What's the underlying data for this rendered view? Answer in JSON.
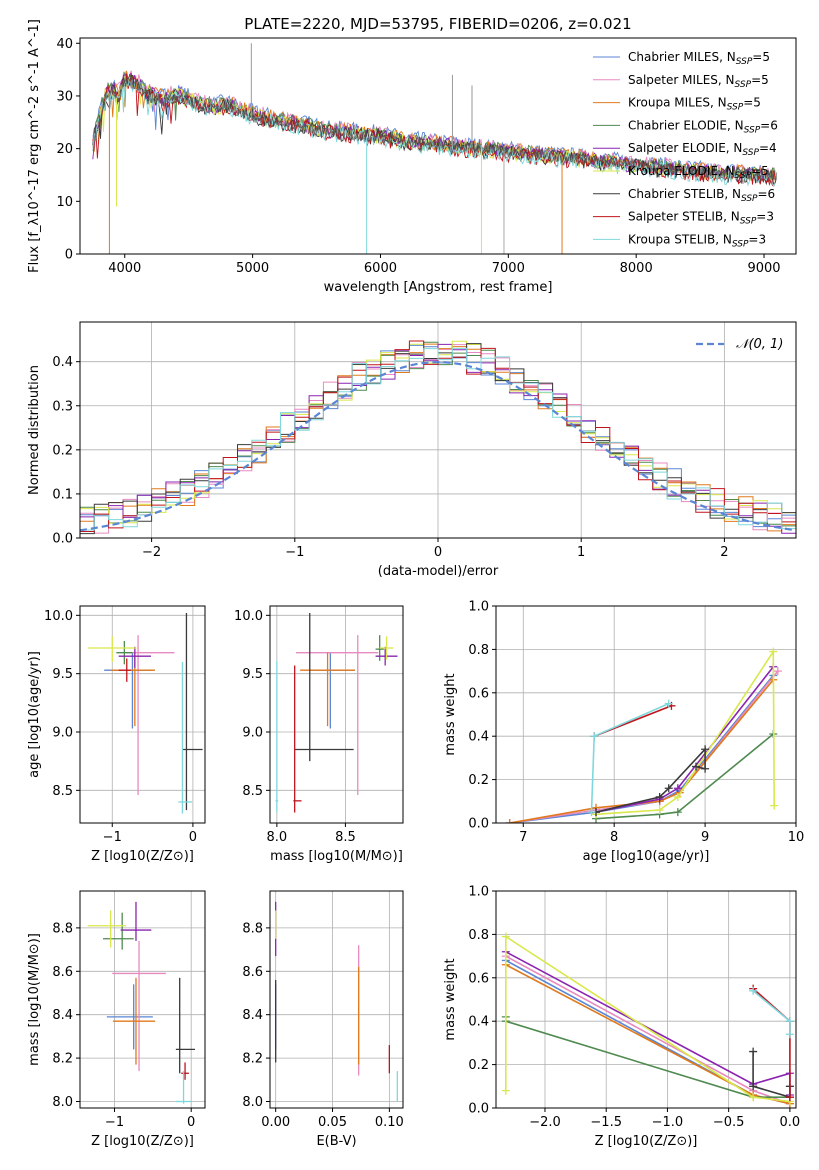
{
  "figure": {
    "title": "PLATE=2220, MJD=53795, FIBERID=0206, z=0.021",
    "model_colors": [
      "#5a86d4",
      "#e88ac0",
      "#e07a1c",
      "#4f8a4f",
      "#8b24b0",
      "#d9e84a",
      "#3a3a3a",
      "#c0141c",
      "#7fd8dc"
    ]
  },
  "chart_data": [
    {
      "type": "line",
      "id": "spectrum",
      "xlabel": "wavelength [Angstrom, rest frame]",
      "ylabel": "Flux [f_λ10^-17 erg cm^-2 s^-1 A^-1]",
      "xlim": [
        3650,
        9250
      ],
      "ylim": [
        0,
        41
      ],
      "xticks": [
        4000,
        5000,
        6000,
        7000,
        8000,
        9000
      ],
      "yticks": [
        0,
        10,
        20,
        30,
        40
      ],
      "grid": false,
      "legend_position": "top-right",
      "legend": [
        "Chabrier MILES, N_SSP=5",
        "Salpeter MILES, N_SSP=5",
        "Kroupa MILES, N_SSP=5",
        "Chabrier ELODIE, N_SSP=6",
        "Salpeter ELODIE, N_SSP=4",
        "Kroupa ELODIE, N_SSP=5",
        "Chabrier STELIB, N_SSP=6",
        "Salpeter STELIB, N_SSP=3",
        "Kroupa STELIB, N_SSP=3"
      ],
      "data_series": {
        "x": [
          3750,
          3800,
          3850,
          3900,
          3950,
          4000,
          4100,
          4200,
          4300,
          4400,
          4500,
          4600,
          4700,
          4800,
          4900,
          5000,
          5200,
          5400,
          5600,
          5800,
          6000,
          6200,
          6400,
          6600,
          6800,
          7000,
          7200,
          7400,
          7600,
          7800,
          8000,
          8200,
          8400,
          8600,
          8800,
          9000,
          9100
        ],
        "y": [
          20,
          25,
          30,
          31,
          29,
          33,
          32,
          30,
          29,
          30,
          29,
          28,
          27.5,
          28,
          27,
          26,
          25,
          24,
          23,
          22.5,
          22,
          21.5,
          21,
          20.5,
          20,
          19.5,
          19,
          18.5,
          18,
          17.5,
          17,
          16.5,
          16,
          15.5,
          15.5,
          15,
          15
        ]
      },
      "model_curves": {
        "x": [
          3750,
          3800,
          3850,
          3900,
          3950,
          4000,
          4100,
          4200,
          4300,
          4400,
          4500,
          4600,
          4700,
          4800,
          4900,
          5000,
          5200,
          5400,
          5600,
          5800,
          6000,
          6200,
          6400,
          6600,
          6800,
          7000,
          7200,
          7400,
          7600,
          7800,
          8000,
          8200,
          8400,
          8600,
          8800,
          9000,
          9100
        ],
        "y": [
          22,
          27,
          31,
          32,
          31,
          34,
          33,
          31,
          30,
          31,
          30,
          29,
          28.5,
          29,
          28,
          27,
          26,
          25,
          24,
          23.5,
          23,
          22,
          21.5,
          21,
          20.5,
          20,
          19.5,
          19,
          18.5,
          18,
          17.5,
          17,
          16.5,
          16,
          15.8,
          15.5,
          15.3
        ]
      }
    },
    {
      "type": "line",
      "id": "residual-hist",
      "xlabel": "(data-model)/error",
      "ylabel": "Normed distribution",
      "xlim": [
        -2.5,
        2.5
      ],
      "ylim": [
        0,
        0.49
      ],
      "xticks": [
        -2,
        -1,
        0,
        1,
        2
      ],
      "yticks": [
        0.0,
        0.1,
        0.2,
        0.3,
        0.4
      ],
      "grid": true,
      "legend": [
        "𝒩(0, 1)"
      ],
      "legend_position": "top-right",
      "bin_width": 0.1,
      "gaussian_color": "#5a86d4"
    },
    {
      "type": "scatter",
      "id": "age-vs-Z",
      "xlabel": "Z [log10(Z/Z⊙)]",
      "ylabel": "age  [log10(age/yr)]",
      "xlim": [
        -1.4,
        0.15
      ],
      "ylim": [
        8.22,
        10.08
      ],
      "xticks": [
        -1,
        0
      ],
      "yticks": [
        8.5,
        9.0,
        9.5,
        10.0
      ],
      "grid": true,
      "points": [
        {
          "x": -0.75,
          "y": 9.53,
          "xerr": [
            0.35,
            0.25
          ],
          "yerr": [
            0.5,
            0.15
          ]
        },
        {
          "x": -0.68,
          "y": 9.68,
          "xerr": [
            0.15,
            0.45
          ],
          "yerr": [
            1.22,
            0.15
          ]
        },
        {
          "x": -0.72,
          "y": 9.53,
          "xerr": [
            0.3,
            0.25
          ],
          "yerr": [
            0.48,
            0.15
          ]
        },
        {
          "x": -0.85,
          "y": 9.68,
          "xerr": [
            0.1,
            0.1
          ],
          "yerr": [
            0.1,
            0.1
          ]
        },
        {
          "x": -0.72,
          "y": 9.65,
          "xerr": [
            0.2,
            0.2
          ],
          "yerr": [
            0.1,
            0.08
          ]
        },
        {
          "x": -1.0,
          "y": 9.72,
          "xerr": [
            0.3,
            0.3
          ],
          "yerr": [
            0.12,
            0.1
          ]
        },
        {
          "x": -0.08,
          "y": 8.85,
          "xerr": [
            0.05,
            0.2
          ],
          "yerr": [
            0.52,
            1.17
          ]
        },
        {
          "x": -0.82,
          "y": 9.53,
          "xerr": [
            0.1,
            0.05
          ],
          "yerr": [
            0.1,
            0.1
          ]
        },
        {
          "x": -0.13,
          "y": 8.4,
          "xerr": [
            0.05,
            0.12
          ],
          "yerr": [
            0.1,
            1.2
          ]
        }
      ]
    },
    {
      "type": "scatter",
      "id": "age-vs-mass",
      "xlabel": "mass [log10(M/M⊙)]",
      "ylabel": "",
      "xlim": [
        7.95,
        8.92
      ],
      "ylim": [
        8.22,
        10.08
      ],
      "xticks": [
        8.0,
        8.5
      ],
      "yticks": [
        8.5,
        9.0,
        9.5,
        10.0
      ],
      "grid": true,
      "points": [
        {
          "x": 8.39,
          "y": 9.53,
          "xerr": [
            0.15,
            0.18
          ],
          "yerr": [
            0.5,
            0.15
          ]
        },
        {
          "x": 8.59,
          "y": 9.68,
          "xerr": [
            0.45,
            0.15
          ],
          "yerr": [
            1.22,
            0.15
          ]
        },
        {
          "x": 8.37,
          "y": 9.53,
          "xerr": [
            0.2,
            0.2
          ],
          "yerr": [
            0.48,
            0.15
          ]
        },
        {
          "x": 8.75,
          "y": 9.71,
          "xerr": [
            0.03,
            0.03
          ],
          "yerr": [
            0.1,
            0.12
          ]
        },
        {
          "x": 8.79,
          "y": 9.65,
          "xerr": [
            0.07,
            0.09
          ],
          "yerr": [
            0.08,
            0.08
          ]
        },
        {
          "x": 8.8,
          "y": 9.72,
          "xerr": [
            0.05,
            0.05
          ],
          "yerr": [
            0.1,
            0.1
          ]
        },
        {
          "x": 8.24,
          "y": 8.85,
          "xerr": [
            0.11,
            0.32
          ],
          "yerr": [
            0.1,
            1.17
          ]
        },
        {
          "x": 8.13,
          "y": 8.41,
          "xerr": [
            0.01,
            0.05
          ],
          "yerr": [
            0.1,
            1.16
          ]
        },
        {
          "x": 8.0,
          "y": 8.41,
          "xerr": [
            0.01,
            0.01
          ],
          "yerr": [
            0.1,
            1.2
          ]
        }
      ]
    },
    {
      "type": "line",
      "id": "massweight-vs-age",
      "xlabel": "age  [log10(age/yr)]",
      "ylabel": "mass weight",
      "xlim": [
        6.7,
        10.0
      ],
      "ylim": [
        0,
        1.0
      ],
      "xticks": [
        7,
        8,
        9,
        10
      ],
      "yticks": [
        0.0,
        0.2,
        0.4,
        0.6,
        0.8,
        1.0
      ],
      "grid": true,
      "series": [
        {
          "x": [
            6.85,
            7.8,
            8.5,
            8.72,
            9.75
          ],
          "y": [
            0.0,
            0.05,
            0.1,
            0.15,
            0.68
          ]
        },
        {
          "x": [
            6.85,
            7.8,
            8.5,
            8.72,
            9.8
          ],
          "y": [
            0.0,
            0.06,
            0.1,
            0.14,
            0.7
          ]
        },
        {
          "x": [
            6.85,
            7.8,
            8.5,
            8.72,
            9.75
          ],
          "y": [
            0.0,
            0.07,
            0.1,
            0.14,
            0.66
          ]
        },
        {
          "x": [
            7.8,
            8.5,
            8.7,
            9.75
          ],
          "y": [
            0.02,
            0.04,
            0.05,
            0.41
          ]
        },
        {
          "x": [
            7.8,
            8.5,
            8.7,
            9.75
          ],
          "y": [
            0.05,
            0.11,
            0.16,
            0.72
          ]
        },
        {
          "x": [
            7.8,
            8.5,
            8.7,
            9.75,
            9.76
          ],
          "y": [
            0.04,
            0.06,
            0.12,
            0.79,
            0.08
          ]
        },
        {
          "x": [
            7.8,
            8.5,
            8.6,
            9.0,
            9.0,
            8.9
          ],
          "y": [
            0.05,
            0.12,
            0.16,
            0.34,
            0.25,
            0.26
          ]
        },
        {
          "x": [
            7.78,
            8.63
          ],
          "y": [
            0.4,
            0.54
          ]
        },
        {
          "x": [
            7.75,
            7.78,
            8.6
          ],
          "y": [
            0.05,
            0.4,
            0.55
          ]
        }
      ]
    },
    {
      "type": "scatter",
      "id": "mass-vs-Z",
      "xlabel": "Z [log10(Z/Z⊙)]",
      "ylabel": "mass [log10(M/M⊙)]",
      "xlim": [
        -1.45,
        0.18
      ],
      "ylim": [
        7.97,
        8.97
      ],
      "xticks": [
        -1,
        0
      ],
      "yticks": [
        8.0,
        8.2,
        8.4,
        8.6,
        8.8
      ],
      "grid": true,
      "points": [
        {
          "x": -0.75,
          "y": 8.39,
          "xerr": [
            0.35,
            0.25
          ],
          "yerr": [
            0.15,
            0.15
          ]
        },
        {
          "x": -0.68,
          "y": 8.59,
          "xerr": [
            0.35,
            0.35
          ],
          "yerr": [
            0.45,
            0.15
          ]
        },
        {
          "x": -0.72,
          "y": 8.37,
          "xerr": [
            0.3,
            0.25
          ],
          "yerr": [
            0.2,
            0.2
          ]
        },
        {
          "x": -0.9,
          "y": 8.75,
          "xerr": [
            0.25,
            0.15
          ],
          "yerr": [
            0.05,
            0.12
          ]
        },
        {
          "x": -0.72,
          "y": 8.79,
          "xerr": [
            0.2,
            0.2
          ],
          "yerr": [
            0.05,
            0.13
          ]
        },
        {
          "x": -1.05,
          "y": 8.81,
          "xerr": [
            0.3,
            0.2
          ],
          "yerr": [
            0.1,
            0.07
          ]
        },
        {
          "x": -0.15,
          "y": 8.24,
          "xerr": [
            0.05,
            0.2
          ],
          "yerr": [
            0.11,
            0.33
          ]
        },
        {
          "x": -0.08,
          "y": 8.13,
          "xerr": [
            0.05,
            0.05
          ],
          "yerr": [
            0.03,
            0.05
          ]
        },
        {
          "x": -0.1,
          "y": 8.0,
          "xerr": [
            0.1,
            0.1
          ],
          "yerr": [
            0.01,
            0.14
          ]
        }
      ]
    },
    {
      "type": "scatter",
      "id": "mass-vs-ebv",
      "xlabel": "E(B-V)",
      "ylabel": "",
      "xlim": [
        -0.005,
        0.112
      ],
      "ylim": [
        7.97,
        8.97
      ],
      "xticks": [
        0.0,
        0.05,
        0.1
      ],
      "yticks": [
        8.0,
        8.2,
        8.4,
        8.6,
        8.8
      ],
      "grid": true,
      "points": [
        {
          "x": 0.0,
          "y": 8.39,
          "xerr": [
            0,
            0
          ],
          "yerr": [
            0.15,
            0.15
          ]
        },
        {
          "x": 0.073,
          "y": 8.59,
          "xerr": [
            0,
            0
          ],
          "yerr": [
            0.47,
            0.13
          ]
        },
        {
          "x": 0.073,
          "y": 8.37,
          "xerr": [
            0,
            0
          ],
          "yerr": [
            0.2,
            0.25
          ]
        },
        {
          "x": 0.0,
          "y": 8.82,
          "xerr": [
            0,
            0
          ],
          "yerr": [
            0.05,
            0.05
          ]
        },
        {
          "x": 0.0,
          "y": 8.85,
          "xerr": [
            0,
            0
          ],
          "yerr": [
            0.18,
            0.07
          ]
        },
        {
          "x": 0.0,
          "y": 8.81,
          "xerr": [
            0,
            0
          ],
          "yerr": [
            0.06,
            0.07
          ]
        },
        {
          "x": 0.0,
          "y": 8.37,
          "xerr": [
            0,
            0
          ],
          "yerr": [
            0.19,
            0.19
          ]
        },
        {
          "x": 0.1,
          "y": 8.2,
          "xerr": [
            0,
            0
          ],
          "yerr": [
            0.07,
            0.06
          ]
        },
        {
          "x": 0.107,
          "y": 8.07,
          "xerr": [
            0,
            0
          ],
          "yerr": [
            0.07,
            0.07
          ]
        }
      ]
    },
    {
      "type": "line",
      "id": "massweight-vs-Z",
      "xlabel": "Z [log10(Z/Z⊙)]",
      "ylabel": "mass weight",
      "xlim": [
        -2.4,
        0.05
      ],
      "ylim": [
        0,
        1.0
      ],
      "xticks": [
        -2.0,
        -1.5,
        -1.0,
        -0.5,
        0.0
      ],
      "yticks": [
        0.0,
        0.2,
        0.4,
        0.6,
        0.8,
        1.0
      ],
      "grid": true,
      "series": [
        {
          "x": [
            -2.32,
            -0.3,
            0.0
          ],
          "y": [
            0.68,
            0.06,
            0.02
          ]
        },
        {
          "x": [
            -2.32,
            -0.3,
            0.0
          ],
          "y": [
            0.7,
            0.08,
            0.02
          ]
        },
        {
          "x": [
            -2.32,
            -0.3,
            0.0
          ],
          "y": [
            0.66,
            0.06,
            0.02
          ]
        },
        {
          "x": [
            -2.32,
            -2.32,
            -0.3,
            0.0
          ],
          "y": [
            0.42,
            0.4,
            0.05,
            0.05
          ]
        },
        {
          "x": [
            -2.32,
            -0.3,
            0.0,
            0.0
          ],
          "y": [
            0.72,
            0.11,
            0.16,
            0.06
          ]
        },
        {
          "x": [
            -2.32,
            -2.32,
            -0.3,
            0.0
          ],
          "y": [
            0.08,
            0.79,
            0.05,
            0.03
          ]
        },
        {
          "x": [
            -0.3,
            -0.3,
            0.0,
            0.0
          ],
          "y": [
            0.26,
            0.1,
            0.05,
            0.1
          ]
        },
        {
          "x": [
            -0.3,
            0.0,
            0.0
          ],
          "y": [
            0.55,
            0.4,
            0.05
          ]
        },
        {
          "x": [
            -0.3,
            0.0,
            0.0
          ],
          "y": [
            0.54,
            0.4,
            0.34
          ]
        }
      ]
    }
  ]
}
